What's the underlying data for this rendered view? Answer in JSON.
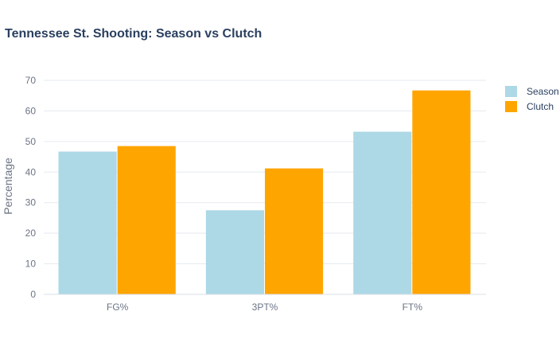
{
  "chart_data": {
    "type": "bar",
    "title": "Tennessee St. Shooting: Season vs Clutch",
    "xlabel": "",
    "ylabel": "Percentage",
    "categories": [
      "FG%",
      "3PT%",
      "FT%"
    ],
    "series": [
      {
        "name": "Season",
        "values": [
          46.7,
          27.5,
          53.2
        ],
        "color": "#add8e6"
      },
      {
        "name": "Clutch",
        "values": [
          48.5,
          41.2,
          66.7
        ],
        "color": "#ffa500"
      }
    ],
    "ylim": [
      0,
      70
    ],
    "yticks": [
      0,
      10,
      20,
      30,
      40,
      50,
      60,
      70
    ],
    "grid": true,
    "legend_position": "top-right"
  }
}
